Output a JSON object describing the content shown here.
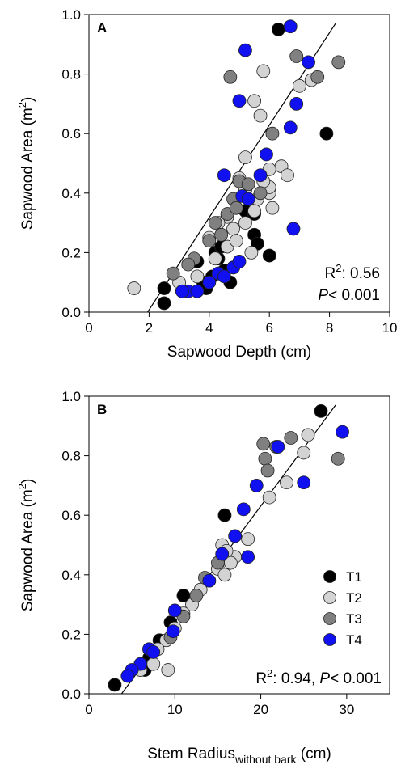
{
  "series_styles": [
    {
      "key": "T1",
      "color": "#000000"
    },
    {
      "key": "T2",
      "color": "#d3d3d3"
    },
    {
      "key": "T3",
      "color": "#808080"
    },
    {
      "key": "T4",
      "color": "#1010f0"
    }
  ],
  "chart_data": [
    {
      "type": "scatter",
      "panel": "A",
      "xlabel": "Sapwood Depth (cm)",
      "ylabel_main": "Sapwood Area (m",
      "ylabel_sup": "2",
      "ylabel_end": ")",
      "xlim": [
        0,
        10
      ],
      "ylim": [
        0,
        1.0
      ],
      "xticks": [
        "0",
        "2",
        "4",
        "6",
        "8",
        "10"
      ],
      "yticks": [
        "0.0",
        "0.2",
        "0.4",
        "0.6",
        "0.8",
        "1.0"
      ],
      "stats": {
        "r_main": "R",
        "r_sup": "2",
        "r_val": ": 0.56",
        "p_label": "P",
        "p_val": "< 0.001"
      },
      "fit_line": {
        "x": [
          1.95,
          8.2
        ],
        "y": [
          0.0,
          0.97
        ]
      },
      "series": [
        {
          "name": "T1",
          "x": [
            6.3,
            7.9,
            2.5,
            2.5,
            3.6,
            3.9,
            4.1,
            4.2,
            4.3,
            4.4,
            4.7,
            4.9,
            5.2,
            5.5,
            5.5,
            5.6,
            6.0,
            4.5,
            3.8
          ],
          "y": [
            0.95,
            0.6,
            0.03,
            0.08,
            0.17,
            0.08,
            0.12,
            0.2,
            0.18,
            0.22,
            0.1,
            0.35,
            0.34,
            0.33,
            0.26,
            0.23,
            0.19,
            0.14,
            0.1
          ]
        },
        {
          "name": "T2",
          "x": [
            1.5,
            5.2,
            5.8,
            5.5,
            5.7,
            6.0,
            6.1,
            6.4,
            6.6,
            7.0,
            7.4,
            5.0,
            5.2,
            5.6,
            6.0,
            4.6,
            4.8,
            5.2,
            5.5,
            5.8,
            6.0,
            4.0,
            4.3,
            4.6,
            4.9,
            3.0,
            3.6,
            4.2,
            4.8,
            5.4
          ],
          "y": [
            0.08,
            0.52,
            0.81,
            0.71,
            0.66,
            0.4,
            0.35,
            0.49,
            0.46,
            0.76,
            0.78,
            0.45,
            0.41,
            0.38,
            0.42,
            0.32,
            0.28,
            0.3,
            0.34,
            0.44,
            0.48,
            0.25,
            0.3,
            0.22,
            0.24,
            0.1,
            0.12,
            0.18,
            0.15,
            0.2
          ]
        },
        {
          "name": "T3",
          "x": [
            4.7,
            6.9,
            7.6,
            8.3,
            6.1,
            4.8,
            5.0,
            5.3,
            5.7,
            4.6,
            4.4,
            4.0,
            3.5,
            2.8,
            3.3,
            4.2,
            4.9
          ],
          "y": [
            0.79,
            0.86,
            0.79,
            0.84,
            0.6,
            0.38,
            0.44,
            0.43,
            0.4,
            0.33,
            0.26,
            0.24,
            0.18,
            0.13,
            0.16,
            0.3,
            0.35
          ]
        },
        {
          "name": "T4",
          "x": [
            5.2,
            6.7,
            7.3,
            5.0,
            6.9,
            6.7,
            5.9,
            5.7,
            4.5,
            5.1,
            5.3,
            6.8,
            4.3,
            4.5,
            4.8,
            5.0,
            3.3,
            3.6,
            3.1,
            4.0
          ],
          "y": [
            0.88,
            0.96,
            0.84,
            0.71,
            0.7,
            0.62,
            0.53,
            0.46,
            0.46,
            0.39,
            0.38,
            0.28,
            0.13,
            0.12,
            0.15,
            0.17,
            0.07,
            0.07,
            0.07,
            0.1
          ]
        }
      ]
    },
    {
      "type": "scatter",
      "panel": "B",
      "xlabel_main": "Stem Radius",
      "xlabel_sub": "without bark",
      "xlabel_end": " (cm)",
      "ylabel_main": "Sapwood Area (m",
      "ylabel_sup": "2",
      "ylabel_end": ")",
      "xlim": [
        0,
        35
      ],
      "ylim": [
        0,
        1.0
      ],
      "xticks": [
        "0",
        "10",
        "20",
        "30"
      ],
      "xtick_values": [
        0,
        10,
        20,
        30
      ],
      "yticks": [
        "0.0",
        "0.2",
        "0.4",
        "0.6",
        "0.8",
        "1.0"
      ],
      "stats": {
        "r_main": "R",
        "r_sup": "2",
        "r_val": ": 0.94, ",
        "p_label": "P",
        "p_val": "< 0.001"
      },
      "legend": {
        "position": "center-right",
        "entries": [
          "T1",
          "T2",
          "T3",
          "T4"
        ]
      },
      "fit_line": {
        "x": [
          3.8,
          28.7
        ],
        "y": [
          0.0,
          0.97
        ]
      },
      "series": [
        {
          "name": "T1",
          "x": [
            27.0,
            15.8,
            3.0,
            6.5,
            8.2,
            9.5,
            11.0,
            7.0
          ],
          "y": [
            0.95,
            0.6,
            0.03,
            0.08,
            0.18,
            0.24,
            0.33,
            0.12
          ]
        },
        {
          "name": "T2",
          "x": [
            9.2,
            21.0,
            23.0,
            25.0,
            25.5,
            17.0,
            18.5,
            16.5,
            15.5,
            15.0,
            14.0,
            13.0,
            12.0,
            11.0,
            10.0,
            9.0,
            8.0,
            7.5,
            6.0,
            16.0,
            15.8
          ],
          "y": [
            0.08,
            0.66,
            0.71,
            0.81,
            0.87,
            0.46,
            0.52,
            0.44,
            0.5,
            0.42,
            0.38,
            0.35,
            0.3,
            0.27,
            0.22,
            0.18,
            0.15,
            0.1,
            0.08,
            0.48,
            0.4
          ]
        },
        {
          "name": "T3",
          "x": [
            20.3,
            21.8,
            23.5,
            29.0,
            20.5,
            20.8,
            15.0,
            13.5,
            12.5,
            11.0,
            9.5
          ],
          "y": [
            0.84,
            0.83,
            0.86,
            0.79,
            0.79,
            0.75,
            0.44,
            0.39,
            0.33,
            0.26,
            0.19
          ]
        },
        {
          "name": "T4",
          "x": [
            29.5,
            22.0,
            25.0,
            19.5,
            18.0,
            17.0,
            15.5,
            18.5,
            14.0,
            10.0,
            9.8,
            7.0,
            6.0,
            5.0,
            4.5,
            7.5
          ],
          "y": [
            0.88,
            0.83,
            0.71,
            0.7,
            0.62,
            0.53,
            0.47,
            0.46,
            0.38,
            0.28,
            0.21,
            0.15,
            0.1,
            0.08,
            0.06,
            0.14
          ]
        }
      ]
    }
  ]
}
